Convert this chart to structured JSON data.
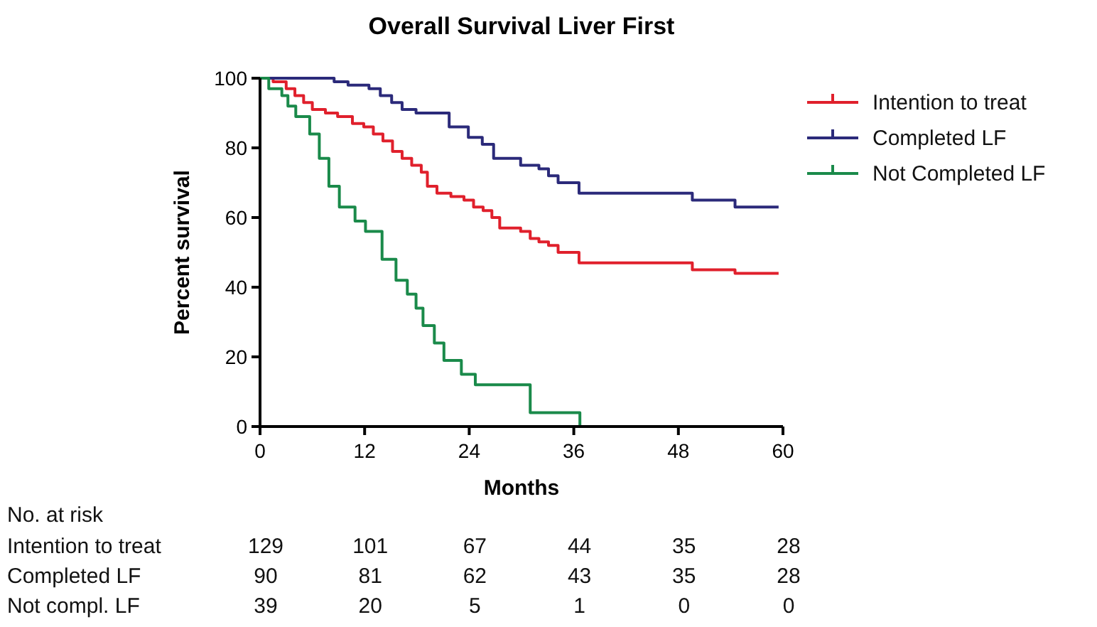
{
  "chart_data": {
    "type": "step",
    "title": "Overall Survival Liver First",
    "xlabel": "Months",
    "ylabel": "Percent survival",
    "xlim": [
      0,
      60
    ],
    "xticks": [
      0,
      12,
      24,
      36,
      48,
      60
    ],
    "ylim": [
      0,
      100
    ],
    "yticks": [
      0,
      20,
      40,
      60,
      80,
      100
    ],
    "grid": false,
    "legend": "right",
    "marker": "none",
    "line_style": "solid",
    "series": [
      {
        "name": "Intention to treat",
        "color": "#e0202c",
        "x": [
          0,
          1.5,
          3,
          4,
          5,
          6,
          7.5,
          8.9,
          10.6,
          11.9,
          13,
          14.1,
          15.2,
          16.3,
          17.4,
          18.5,
          19.2,
          20.3,
          21.9,
          23.4,
          24.5,
          25.6,
          26.6,
          27.5,
          29.9,
          31,
          32,
          33.1,
          34.2,
          36.6,
          49.6,
          54.5,
          59.5
        ],
        "values": [
          100,
          99,
          97,
          95,
          93,
          91,
          90,
          89,
          87,
          86,
          84,
          82,
          79,
          77,
          75,
          73,
          69,
          67,
          66,
          65,
          63,
          62,
          60,
          57,
          56,
          54,
          53,
          52,
          50,
          47,
          45,
          44,
          44
        ]
      },
      {
        "name": "Completed LF",
        "color": "#2b2a7a",
        "x": [
          0,
          8.5,
          10.1,
          12.5,
          13.8,
          15.1,
          16.3,
          17.9,
          21.7,
          23.9,
          25.5,
          26.8,
          29.9,
          32,
          33.1,
          34.2,
          36.6,
          49.6,
          54.5,
          59.5
        ],
        "values": [
          100,
          99,
          98,
          97,
          95,
          93,
          91,
          90,
          86,
          83,
          81,
          77,
          75,
          74,
          72,
          70,
          67,
          65,
          63,
          63
        ]
      },
      {
        "name": "Not Completed LF",
        "color": "#1a8a4a",
        "x": [
          0,
          1,
          2.5,
          3.2,
          4.1,
          5.7,
          6.8,
          7.9,
          9.1,
          10.9,
          12.1,
          14,
          15.6,
          16.9,
          17.9,
          18.7,
          20,
          21.1,
          23.1,
          24.7,
          31,
          36.7
        ],
        "values": [
          100,
          97,
          95,
          92,
          89,
          84,
          77,
          69,
          63,
          59,
          56,
          48,
          42,
          38,
          34,
          29,
          24,
          19,
          15,
          12,
          4,
          0
        ]
      }
    ],
    "annotations": [
      "No. at risk",
      "Intention to treat",
      "129",
      "101",
      "67",
      "44",
      "35",
      "28",
      "Completed LF",
      "90",
      "81",
      "62",
      "43",
      "35",
      "28",
      "Not compl. LF",
      "39",
      "20",
      "5",
      "1",
      "0",
      "0"
    ]
  }
}
